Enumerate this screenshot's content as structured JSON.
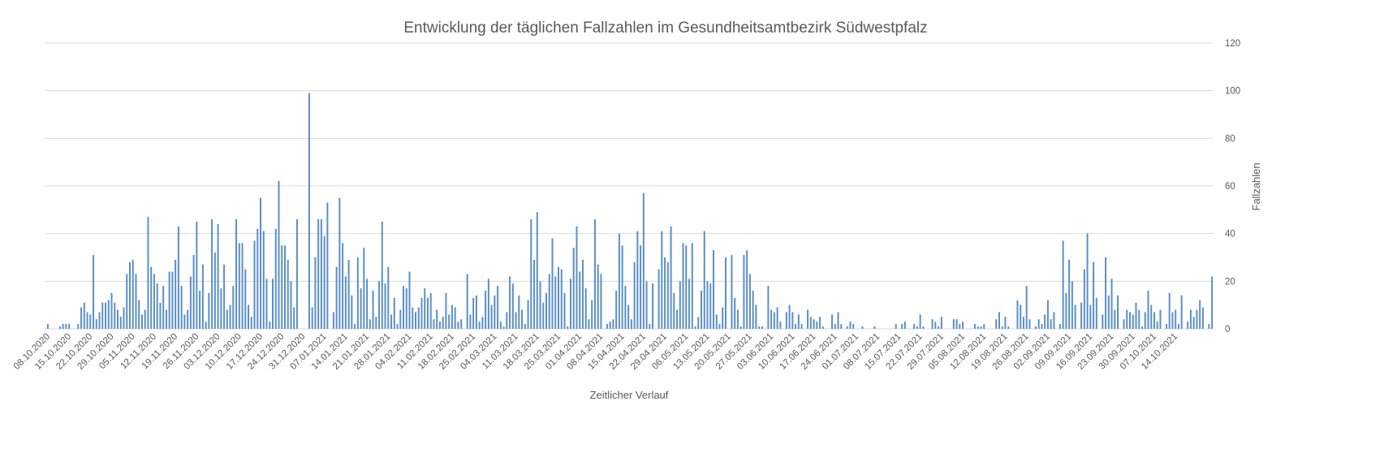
{
  "chart_data": {
    "type": "bar",
    "title": "Entwicklung der täglichen Fallzahlen im Gesundheitsamtbezirk Südwestpfalz",
    "xlabel": "Zeitlicher Verlauf",
    "ylabel": "Fallzahlen",
    "ylim": [
      0,
      120
    ],
    "y_ticks": [
      0,
      20,
      40,
      60,
      80,
      100,
      120
    ],
    "y_axis_side": "right",
    "grid": true,
    "bar_color": "#5b8fc6",
    "x_start": "08.10.2020",
    "x_tick_step_days": 7,
    "x_tick_labels": [
      "08.10.2020",
      "15.10.2020",
      "22.10.2020",
      "29.10.2020",
      "05.11.2020",
      "12.11.2020",
      "19.11.2020",
      "26.11.2020",
      "03.12.2020",
      "10.12.2020",
      "17.12.2020",
      "24.12.2020",
      "31.12.2020",
      "07.01.2021",
      "14.01.2021",
      "21.01.2021",
      "28.01.2021",
      "04.02.2021",
      "11.02.2021",
      "18.02.2021",
      "25.02.2021",
      "04.03.2021",
      "11.03.2021",
      "18.03.2021",
      "25.03.2021",
      "01.04.2021",
      "08.04.2021",
      "15.04.2021",
      "22.04.2021",
      "29.04.2021",
      "06.05.2021",
      "13.05.2021",
      "20.05.2021",
      "27.05.2021",
      "03.06.2021",
      "10.06.2021",
      "17.06.2021",
      "24.06.2021",
      "01.07.2021",
      "08.07.2021",
      "15.07.2021",
      "22.07.2021",
      "29.07.2021",
      "05.08.2021",
      "12.08.2021",
      "19.08.2021",
      "26.08.2021",
      "02.09.2021",
      "09.09.2021",
      "16.09.2021",
      "23.09.2021",
      "30.09.2021",
      "07.10.2021",
      "14.10.2021"
    ],
    "values": [
      2,
      0,
      0,
      0,
      1,
      2,
      2,
      2,
      0,
      0,
      2,
      9,
      11,
      7,
      6,
      31,
      4,
      7,
      11,
      11,
      12,
      15,
      11,
      8,
      5,
      9,
      23,
      28,
      29,
      23,
      12,
      6,
      8,
      47,
      26,
      23,
      19,
      11,
      18,
      8,
      24,
      24,
      29,
      43,
      18,
      6,
      8,
      22,
      31,
      45,
      16,
      27,
      3,
      15,
      46,
      32,
      44,
      17,
      27,
      8,
      10,
      18,
      46,
      36,
      36,
      25,
      10,
      5,
      37,
      42,
      55,
      41,
      21,
      3,
      21,
      42,
      62,
      35,
      35,
      29,
      20,
      9,
      46,
      0,
      0,
      0,
      99,
      9,
      30,
      46,
      46,
      39,
      53,
      0,
      7,
      26,
      55,
      36,
      22,
      29,
      14,
      2,
      30,
      17,
      34,
      21,
      4,
      16,
      5,
      20,
      45,
      19,
      26,
      6,
      13,
      2,
      8,
      18,
      17,
      24,
      9,
      7,
      9,
      13,
      17,
      13,
      15,
      4,
      8,
      3,
      5,
      15,
      6,
      10,
      9,
      3,
      4,
      0,
      23,
      6,
      13,
      14,
      3,
      5,
      16,
      21,
      10,
      14,
      18,
      3,
      1,
      7,
      22,
      19,
      7,
      14,
      8,
      2,
      12,
      46,
      29,
      49,
      20,
      11,
      15,
      23,
      38,
      22,
      26,
      25,
      15,
      1,
      21,
      34,
      43,
      24,
      29,
      17,
      4,
      12,
      46,
      27,
      23,
      0,
      2,
      3,
      4,
      16,
      40,
      35,
      18,
      10,
      4,
      28,
      41,
      35,
      57,
      20,
      2,
      19,
      0,
      25,
      41,
      30,
      28,
      43,
      15,
      8,
      20,
      36,
      35,
      21,
      36,
      1,
      5,
      16,
      41,
      20,
      19,
      33,
      6,
      2,
      9,
      30,
      0,
      31,
      13,
      8,
      1,
      31,
      33,
      23,
      16,
      10,
      1,
      1,
      0,
      18,
      8,
      7,
      9,
      3,
      0,
      7,
      10,
      7,
      2,
      6,
      2,
      0,
      8,
      5,
      4,
      3,
      5,
      1,
      0,
      0,
      6,
      2,
      7,
      2,
      0,
      1,
      3,
      2,
      0,
      0,
      1,
      0,
      0,
      0,
      1,
      0,
      0,
      0,
      0,
      0,
      0,
      2,
      0,
      2,
      3,
      0,
      0,
      2,
      1,
      6,
      1,
      0,
      0,
      4,
      3,
      1,
      5,
      0,
      0,
      0,
      4,
      4,
      2,
      3,
      0,
      0,
      0,
      2,
      1,
      1,
      2,
      0,
      0,
      0,
      4,
      7,
      1,
      5,
      1,
      0,
      0,
      12,
      10,
      5,
      18,
      4,
      0,
      1,
      4,
      2,
      6,
      12,
      4,
      7,
      0,
      2,
      37,
      15,
      29,
      20,
      10,
      0,
      11,
      25,
      40,
      10,
      28,
      13,
      0,
      6,
      30,
      14,
      21,
      8,
      14,
      0,
      4,
      8,
      7,
      6,
      11,
      8,
      1,
      7,
      16,
      10,
      7,
      3,
      8,
      0,
      2,
      15,
      7,
      8,
      2,
      14,
      0,
      3,
      8,
      5,
      8,
      12,
      9,
      0,
      2,
      22
    ]
  }
}
